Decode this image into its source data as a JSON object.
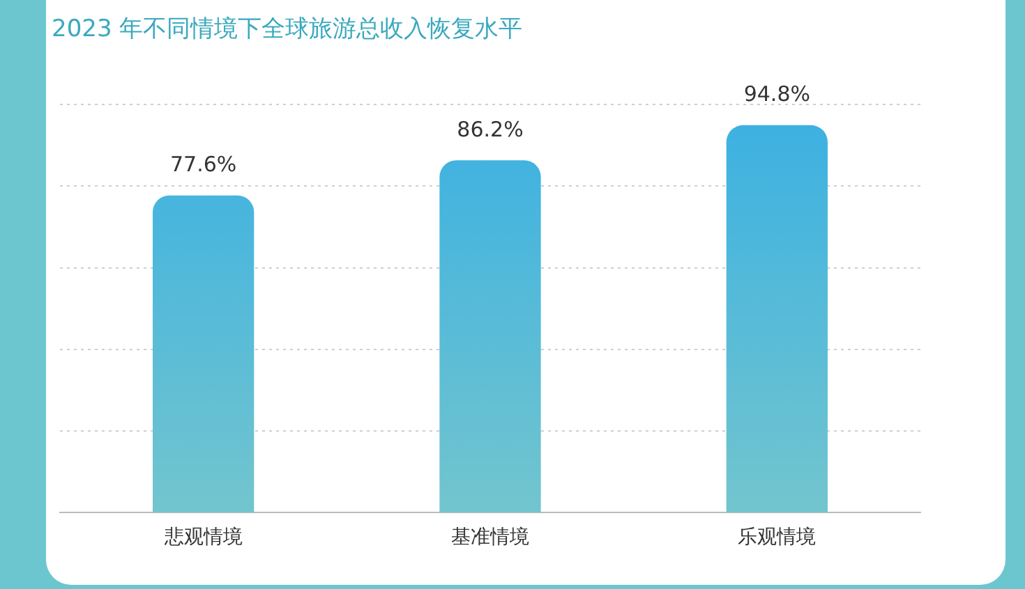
{
  "chart_data": {
    "type": "bar",
    "title": "2023 年不同情境下全球旅游总收入恢复水平",
    "categories": [
      "悲观情境",
      "基准情境",
      "乐观情境"
    ],
    "values": [
      77.6,
      86.2,
      94.8
    ],
    "value_labels": [
      "77.6%",
      "86.2%",
      "94.8%"
    ],
    "color": "#3ab0e2",
    "ylim": [
      0,
      100
    ],
    "yticks": [
      {
        "value": 0,
        "label": null
      },
      {
        "value": 20,
        "label": null
      },
      {
        "value": 40,
        "label": null
      },
      {
        "value": 60,
        "label": null
      },
      {
        "value": 80,
        "label": null
      },
      {
        "value": 100,
        "label": null
      }
    ],
    "grid": "y",
    "tick_labels": "x",
    "legend": false
  }
}
